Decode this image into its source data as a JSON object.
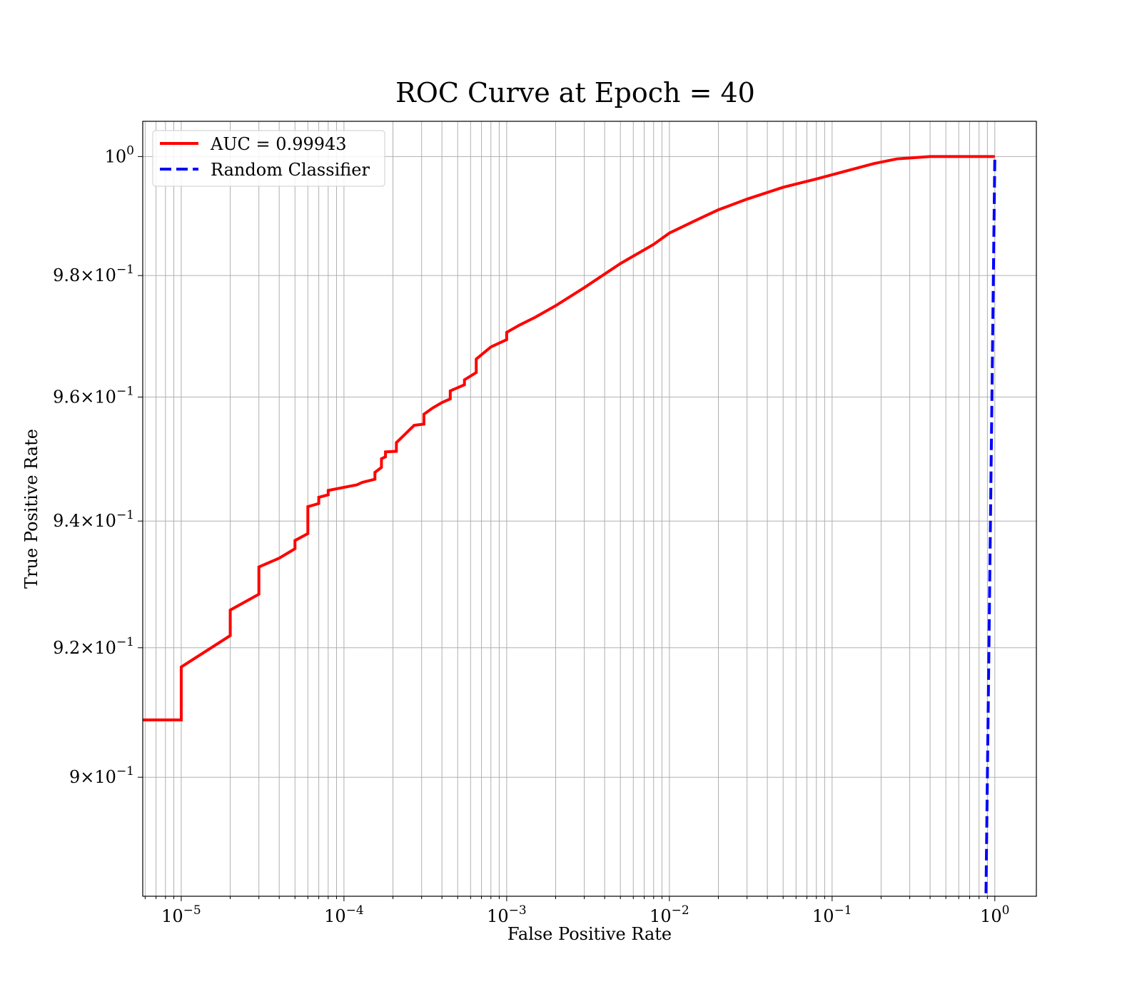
{
  "chart_data": {
    "type": "line",
    "title": "ROC Curve at Epoch = 40",
    "xlabel": "False Positive Rate",
    "ylabel": "True Positive Rate",
    "xscale": "log",
    "yscale": "log",
    "xlim": [
      5.8e-06,
      1.8
    ],
    "ylim": [
      0.882,
      1.006
    ],
    "grid": true,
    "legend_position": "top-left",
    "x_ticks": [
      {
        "value": 1e-05,
        "base": "10",
        "exp": "−5"
      },
      {
        "value": 0.0001,
        "base": "10",
        "exp": "−4"
      },
      {
        "value": 0.001,
        "base": "10",
        "exp": "−3"
      },
      {
        "value": 0.01,
        "base": "10",
        "exp": "−2"
      },
      {
        "value": 0.1,
        "base": "10",
        "exp": "−1"
      },
      {
        "value": 1,
        "base": "10",
        "exp": "0"
      }
    ],
    "y_ticks": [
      {
        "value": 0.9,
        "mant": "9×10",
        "exp": "−1"
      },
      {
        "value": 0.92,
        "mant": "9.2×10",
        "exp": "−1"
      },
      {
        "value": 0.94,
        "mant": "9.4×10",
        "exp": "−1"
      },
      {
        "value": 0.96,
        "mant": "9.6×10",
        "exp": "−1"
      },
      {
        "value": 0.98,
        "mant": "9.8×10",
        "exp": "−1"
      },
      {
        "value": 1.0,
        "mant": "10",
        "exp": "0"
      }
    ],
    "series": [
      {
        "name": "AUC = 0.99943",
        "color": "#ff0000",
        "style": "solid",
        "points": [
          [
            5.8e-06,
            0.9088
          ],
          [
            1e-05,
            0.9088
          ],
          [
            1e-05,
            0.917
          ],
          [
            2e-05,
            0.9219
          ],
          [
            2e-05,
            0.9259
          ],
          [
            3e-05,
            0.9284
          ],
          [
            3e-05,
            0.9327
          ],
          [
            4e-05,
            0.9341
          ],
          [
            5e-05,
            0.9356
          ],
          [
            5e-05,
            0.9369
          ],
          [
            6e-05,
            0.938
          ],
          [
            6e-05,
            0.9423
          ],
          [
            7e-05,
            0.9428
          ],
          [
            7e-05,
            0.9438
          ],
          [
            8e-05,
            0.9442
          ],
          [
            8e-05,
            0.9449
          ],
          [
            0.00012,
            0.9458
          ],
          [
            0.00013,
            0.9462
          ],
          [
            0.000155,
            0.9467
          ],
          [
            0.000155,
            0.9478
          ],
          [
            0.00017,
            0.9486
          ],
          [
            0.00017,
            0.95
          ],
          [
            0.00018,
            0.9503
          ],
          [
            0.00018,
            0.9511
          ],
          [
            0.00021,
            0.9512
          ],
          [
            0.00021,
            0.9526
          ],
          [
            0.00023,
            0.9536
          ],
          [
            0.00027,
            0.9554
          ],
          [
            0.00031,
            0.9556
          ],
          [
            0.00031,
            0.9572
          ],
          [
            0.00035,
            0.9582
          ],
          [
            0.0004,
            0.9591
          ],
          [
            0.00045,
            0.9597
          ],
          [
            0.00045,
            0.961
          ],
          [
            0.00055,
            0.962
          ],
          [
            0.00055,
            0.9628
          ],
          [
            0.00065,
            0.964
          ],
          [
            0.00065,
            0.9662
          ],
          [
            0.0008,
            0.9682
          ],
          [
            0.001,
            0.9694
          ],
          [
            0.001,
            0.9706
          ],
          [
            0.0012,
            0.9718
          ],
          [
            0.0015,
            0.9731
          ],
          [
            0.002,
            0.975
          ],
          [
            0.003,
            0.978
          ],
          [
            0.005,
            0.982
          ],
          [
            0.008,
            0.9852
          ],
          [
            0.01,
            0.9871
          ],
          [
            0.015,
            0.9894
          ],
          [
            0.02,
            0.991
          ],
          [
            0.03,
            0.9928
          ],
          [
            0.05,
            0.9948
          ],
          [
            0.08,
            0.9962
          ],
          [
            0.12,
            0.9975
          ],
          [
            0.18,
            0.9988
          ],
          [
            0.25,
            0.9996
          ],
          [
            0.4,
            1.0
          ],
          [
            1.0,
            1.0
          ]
        ]
      },
      {
        "name": "Random Classifier",
        "color": "#0000ff",
        "style": "dashed",
        "points": [
          [
            0.88,
            0.88
          ],
          [
            0.9,
            0.9
          ],
          [
            0.95,
            0.95
          ],
          [
            1.0,
            1.0
          ]
        ]
      }
    ]
  }
}
